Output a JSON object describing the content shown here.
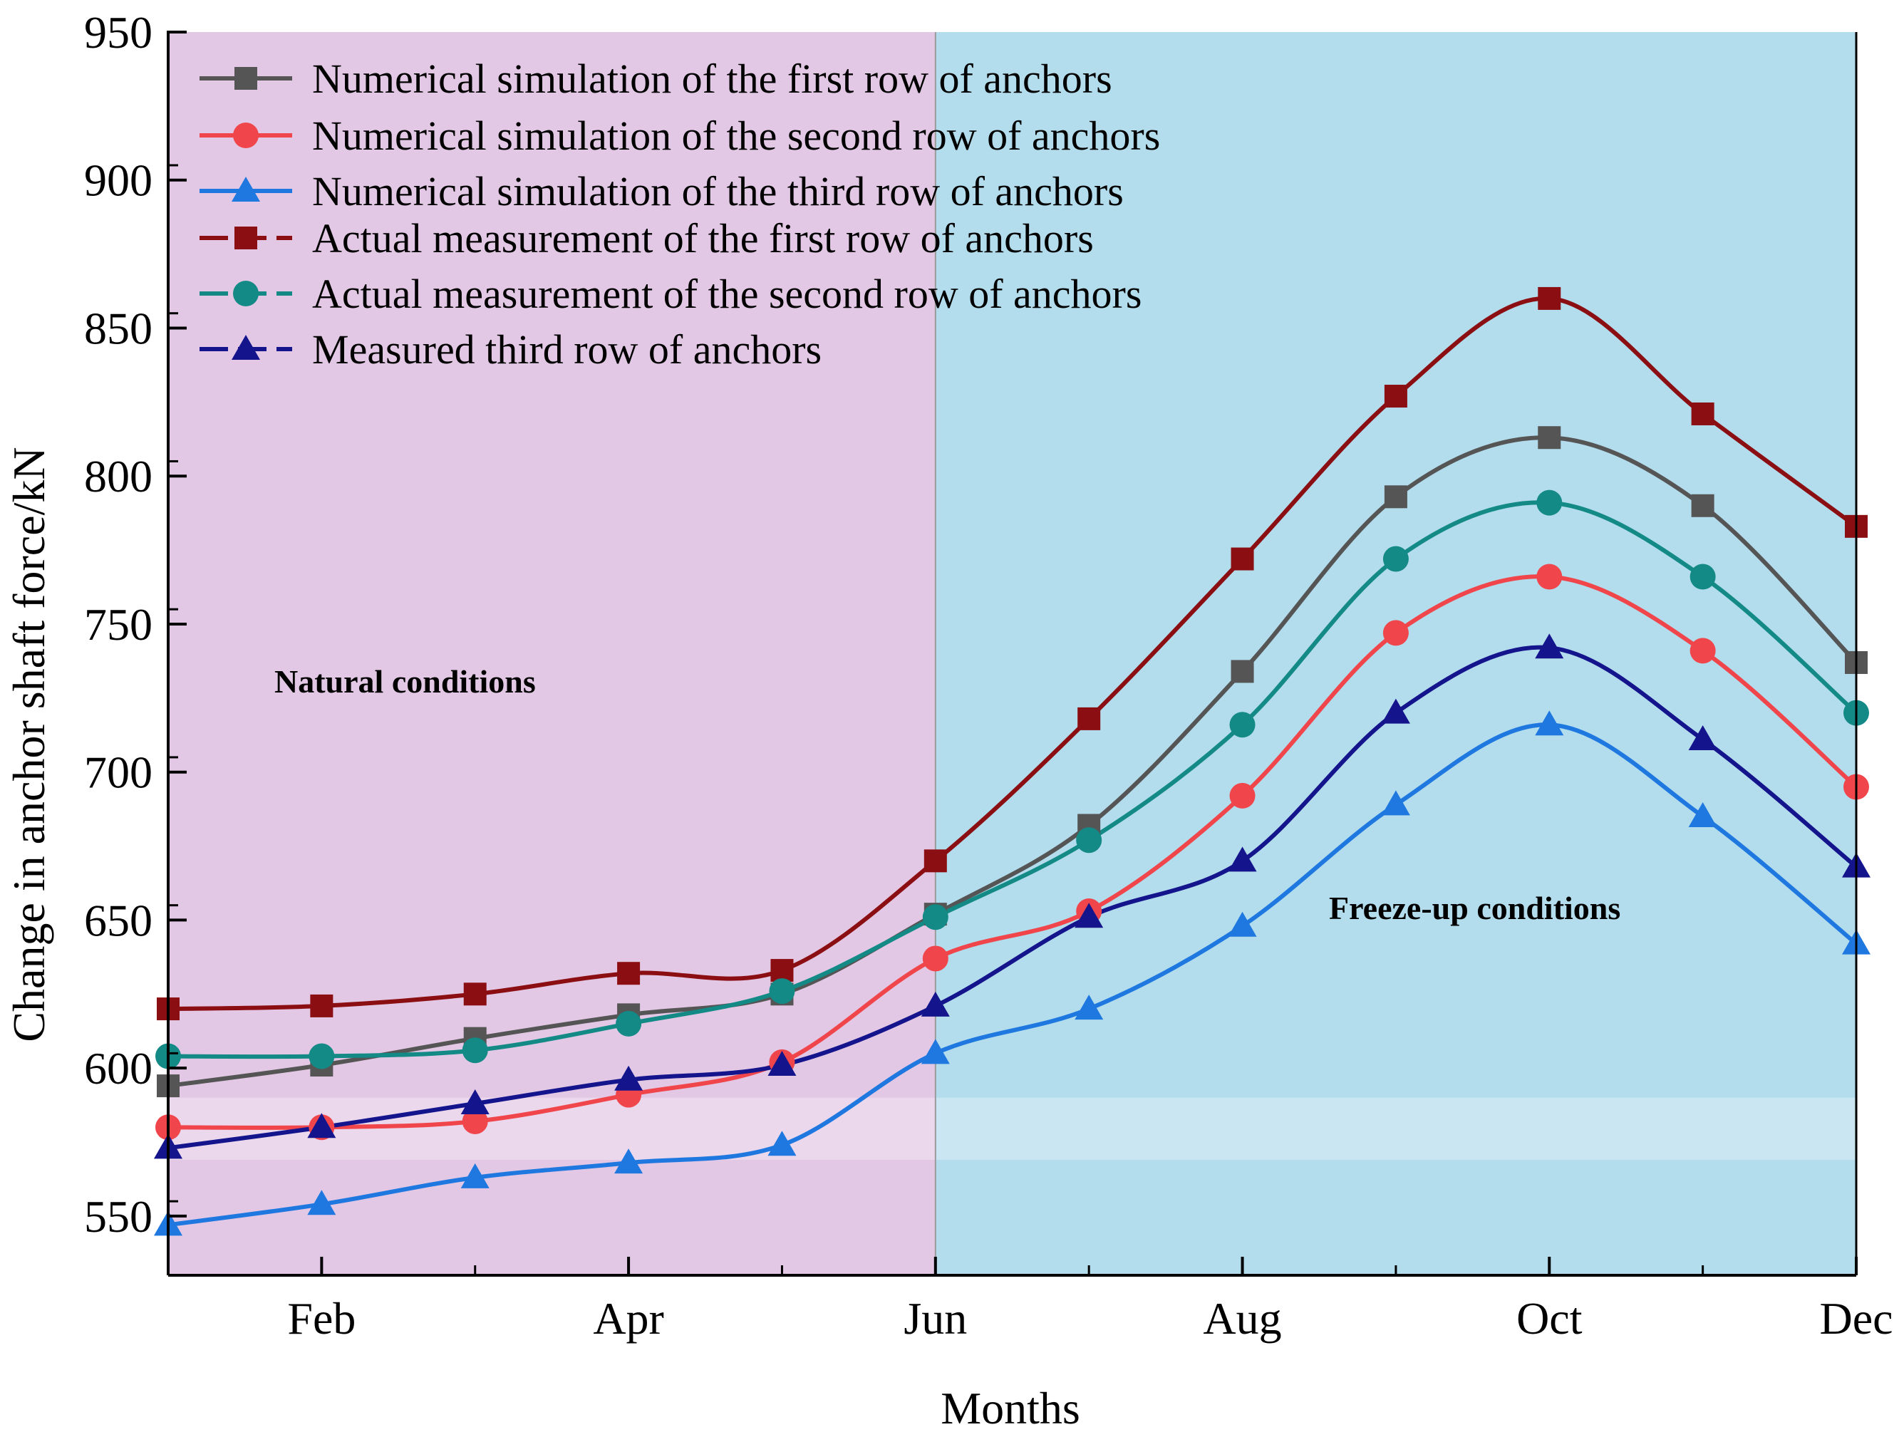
{
  "chart_data": {
    "type": "line",
    "title": "",
    "xlabel": "Months",
    "ylabel": "Change in anchor shaft force/kN",
    "x": [
      1,
      2,
      3,
      4,
      5,
      6,
      7,
      8,
      9,
      10,
      11,
      12
    ],
    "xlim": [
      1,
      12
    ],
    "ylim": [
      530,
      950
    ],
    "xticks": [
      {
        "x": 2,
        "label": "Feb"
      },
      {
        "x": 4,
        "label": "Apr"
      },
      {
        "x": 6,
        "label": "Jun"
      },
      {
        "x": 8,
        "label": "Aug"
      },
      {
        "x": 10,
        "label": "Oct"
      },
      {
        "x": 12,
        "label": "Dec"
      }
    ],
    "yticks": [
      550,
      600,
      650,
      700,
      750,
      800,
      850,
      900,
      950
    ],
    "regions": [
      {
        "name": "natural",
        "label": "Natural conditions",
        "from": 1,
        "to": 6,
        "color": "#e2c8e4"
      },
      {
        "name": "freeze",
        "label": "Freeze-up conditions",
        "from": 6,
        "to": 12,
        "color": "#b3dcec"
      }
    ],
    "legend_position": "top-left",
    "series": [
      {
        "name": "Numerical simulation of the first row of anchors",
        "color": "#555555",
        "marker": "square",
        "dash": "solid",
        "values": [
          594,
          601,
          610,
          618,
          625,
          652,
          682,
          734,
          793,
          813,
          790,
          737
        ]
      },
      {
        "name": "Numerical simulation of the second row of anchors",
        "color": "#f0464b",
        "marker": "circle",
        "dash": "solid",
        "values": [
          580,
          580,
          582,
          591,
          602,
          637,
          653,
          692,
          747,
          766,
          741,
          695
        ]
      },
      {
        "name": "Numerical simulation of the third row of anchors",
        "color": "#1e78e0",
        "marker": "triangle",
        "dash": "solid",
        "values": [
          547,
          554,
          563,
          568,
          574,
          605,
          620,
          648,
          689,
          716,
          685,
          642
        ]
      },
      {
        "name": "Actual measurement of the first row of anchors",
        "color": "#8b0f12",
        "marker": "square",
        "dash": "dashed",
        "values": [
          620,
          621,
          625,
          632,
          633,
          670,
          718,
          772,
          827,
          860,
          821,
          783
        ]
      },
      {
        "name": "Actual measurement of the second row of anchors",
        "color": "#138a86",
        "marker": "circle",
        "dash": "dashed",
        "values": [
          604,
          604,
          606,
          615,
          626,
          651,
          677,
          716,
          772,
          791,
          766,
          720
        ]
      },
      {
        "name": "Measured third row of anchors",
        "color": "#14148c",
        "marker": "triangle",
        "dash": "dashed",
        "values": [
          573,
          580,
          588,
          596,
          601,
          621,
          651,
          670,
          720,
          742,
          711,
          668
        ]
      }
    ]
  }
}
